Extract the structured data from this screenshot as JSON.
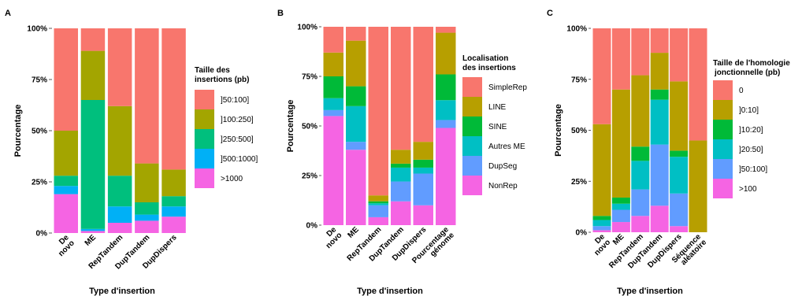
{
  "chart_data": [
    {
      "panel": "A",
      "type": "bar",
      "stacked": true,
      "ylabel": "Pourcentage",
      "xlabel": "Type d'insertion",
      "yticks": [
        "0%",
        "25%",
        "50%",
        "75%",
        "100%"
      ],
      "ylim": [
        0,
        100
      ],
      "categories": [
        "De novo",
        "ME",
        "RepTandem",
        "DupTandem",
        "DupDispers"
      ],
      "legend_title": [
        "Taille des",
        "insertions (pb)"
      ],
      "series": [
        {
          "name": ">1000",
          "color": "#f564e3",
          "values": [
            19,
            1,
            5,
            6,
            8
          ]
        },
        {
          "name": "]500:1000]",
          "color": "#00b0f6",
          "values": [
            4,
            1,
            8,
            3,
            5
          ]
        },
        {
          "name": "]250:500]",
          "color": "#00bf7d",
          "values": [
            5,
            63,
            15,
            6,
            5
          ]
        },
        {
          "name": "]100:250]",
          "color": "#a3a500",
          "values": [
            22,
            24,
            34,
            19,
            13
          ]
        },
        {
          "name": "]50:100]",
          "color": "#f8766d",
          "values": [
            50,
            11,
            38,
            66,
            69
          ]
        }
      ]
    },
    {
      "panel": "B",
      "type": "bar",
      "stacked": true,
      "ylabel": "Pourcentage",
      "xlabel": "Type d'insertion",
      "yticks": [
        "0%",
        "25%",
        "50%",
        "75%",
        "100%"
      ],
      "ylim": [
        0,
        100
      ],
      "categories": [
        "De novo",
        "ME",
        "RepTandem",
        "DupTandem",
        "DupDispers",
        "Pourcentage génome"
      ],
      "legend_title": [
        "Localisation",
        "des insertions"
      ],
      "series": [
        {
          "name": "NonRep",
          "color": "#f564e3",
          "values": [
            55,
            38,
            4,
            12,
            10,
            49
          ]
        },
        {
          "name": "DupSeg",
          "color": "#619cff",
          "values": [
            3,
            4,
            6,
            10,
            16,
            4
          ]
        },
        {
          "name": "Autres ME",
          "color": "#00bfc4",
          "values": [
            6,
            18,
            1,
            7,
            3,
            10
          ]
        },
        {
          "name": "SINE",
          "color": "#00ba38",
          "values": [
            11,
            10,
            1,
            2,
            4,
            13
          ]
        },
        {
          "name": "LINE",
          "color": "#b79f00",
          "values": [
            12,
            23,
            3,
            7,
            9,
            21
          ]
        },
        {
          "name": "SimpleRep",
          "color": "#f8766d",
          "values": [
            13,
            7,
            85,
            62,
            58,
            3
          ]
        }
      ]
    },
    {
      "panel": "C",
      "type": "bar",
      "stacked": true,
      "ylabel": "Pourcentage",
      "xlabel": "Type d'insertion",
      "yticks": [
        "0%",
        "25%",
        "50%",
        "75%",
        "100%"
      ],
      "ylim": [
        0,
        100
      ],
      "categories": [
        "De novo",
        "ME",
        "RepTandem",
        "DupTandem",
        "DupDispers",
        "Séquence aléatoire"
      ],
      "legend_title": [
        "Taille de l'homologie",
        "jonctionnelle (pb)"
      ],
      "series": [
        {
          "name": ">100",
          "color": "#f564e3",
          "values": [
            1,
            5,
            8,
            13,
            3,
            0
          ]
        },
        {
          "name": "]50:100]",
          "color": "#619cff",
          "values": [
            2,
            6,
            13,
            30,
            16,
            0
          ]
        },
        {
          "name": "]20:50]",
          "color": "#00bfc4",
          "values": [
            3,
            3,
            14,
            22,
            18,
            0
          ]
        },
        {
          "name": "]10:20]",
          "color": "#00ba38",
          "values": [
            2,
            3,
            7,
            5,
            3,
            0
          ]
        },
        {
          "name": "]0:10]",
          "color": "#b79f00",
          "values": [
            45,
            53,
            35,
            18,
            34,
            45
          ]
        },
        {
          "name": "0",
          "color": "#f8766d",
          "values": [
            47,
            30,
            23,
            12,
            26,
            55
          ]
        }
      ]
    }
  ]
}
